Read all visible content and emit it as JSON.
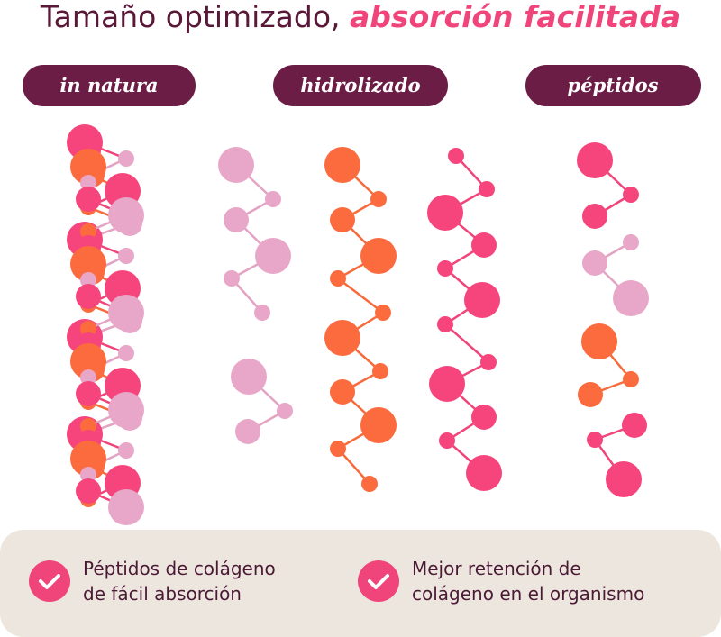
{
  "header": {
    "title_plain": "Tamaño optimizado,",
    "title_accent": "absorción facilitada"
  },
  "columns": [
    {
      "label": "in natura"
    },
    {
      "label": "hidrolizado"
    },
    {
      "label": "péptidos"
    }
  ],
  "benefits": [
    {
      "lines": [
        "Péptidos de colágeno",
        "de fácil absorción"
      ]
    },
    {
      "lines": [
        "Mejor retención de",
        "colágeno en el organismo"
      ]
    }
  ]
}
